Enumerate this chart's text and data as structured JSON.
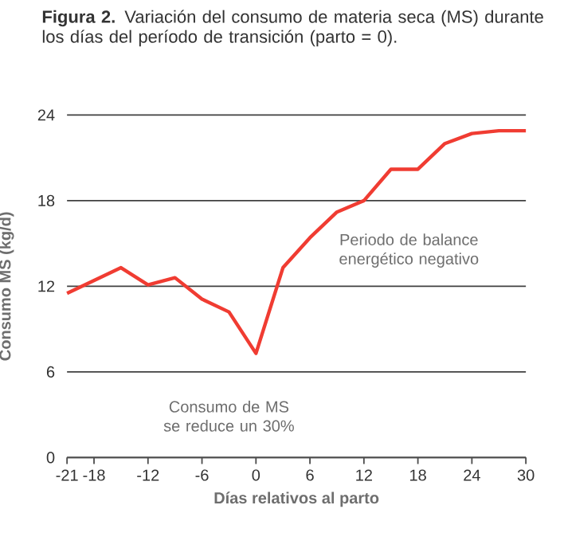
{
  "chart_data": {
    "type": "line",
    "title": "**Figura 2.** Variación del consumo de materia seca (MS) durante los días del período de transición (parto = 0).",
    "xlabel": "Días relativos al parto",
    "ylabel": "Consumo MS (kg/d)",
    "x": [
      -21,
      -15,
      -12,
      -9,
      -6,
      -3,
      0,
      3,
      6,
      9,
      12,
      15,
      18,
      21,
      24,
      27,
      30
    ],
    "series": [
      {
        "color": "#f03c32",
        "values": [
          11.5,
          13.3,
          12.1,
          12.6,
          11.1,
          10.2,
          7.3,
          13.3,
          15.4,
          17.2,
          18,
          20.2,
          20.2,
          22,
          22.7,
          22.9,
          22.9
        ]
      }
    ],
    "xlim": [
      -21,
      30
    ],
    "xticks": [
      -21,
      -18,
      -12,
      -6,
      0,
      6,
      12,
      18,
      24,
      30
    ],
    "ylim": [
      0,
      24
    ],
    "yticks": [
      0,
      6,
      12,
      18,
      24
    ],
    "grid": "y",
    "marker": "none",
    "line_style": "solid",
    "annotations": [
      "Periodo de balance energético negativo",
      "Consumo de MS se reduce un 30%"
    ]
  }
}
